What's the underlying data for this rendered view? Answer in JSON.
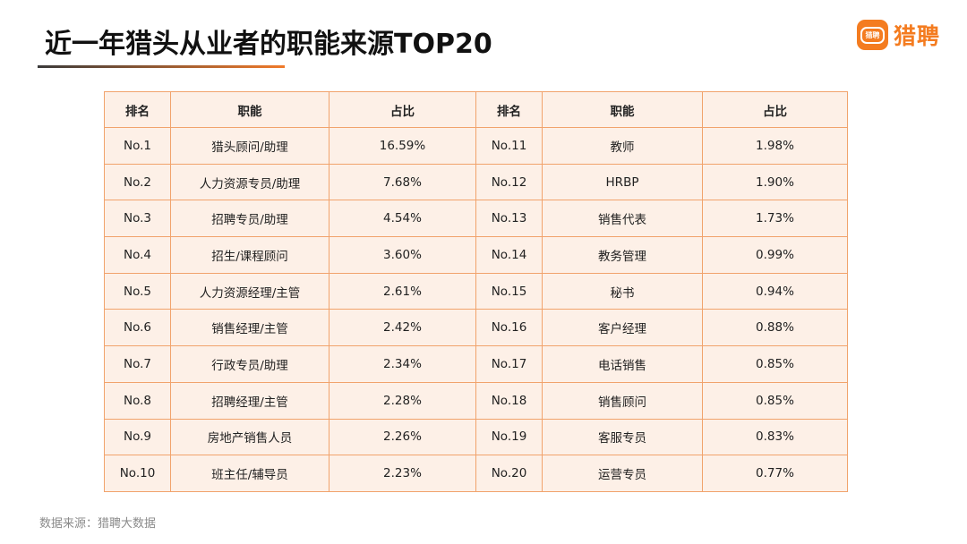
{
  "title": "近一年猎头从业者的职能来源TOP20",
  "logo": {
    "icon_text": "猎聘",
    "text": "猎聘"
  },
  "table": {
    "headers": [
      "排名",
      "职能",
      "占比",
      "排名",
      "职能",
      "占比"
    ],
    "rows": [
      [
        "No.1",
        "猎头顾问/助理",
        "16.59%",
        "No.11",
        "教师",
        "1.98%"
      ],
      [
        "No.2",
        "人力资源专员/助理",
        "7.68%",
        "No.12",
        "HRBP",
        "1.90%"
      ],
      [
        "No.3",
        "招聘专员/助理",
        "4.54%",
        "No.13",
        "销售代表",
        "1.73%"
      ],
      [
        "No.4",
        "招生/课程顾问",
        "3.60%",
        "No.14",
        "教务管理",
        "0.99%"
      ],
      [
        "No.5",
        "人力资源经理/主管",
        "2.61%",
        "No.15",
        "秘书",
        "0.94%"
      ],
      [
        "No.6",
        "销售经理/主管",
        "2.42%",
        "No.16",
        "客户经理",
        "0.88%"
      ],
      [
        "No.7",
        "行政专员/助理",
        "2.34%",
        "No.17",
        "电话销售",
        "0.85%"
      ],
      [
        "No.8",
        "招聘经理/主管",
        "2.28%",
        "No.18",
        "销售顾问",
        "0.85%"
      ],
      [
        "No.9",
        "房地产销售人员",
        "2.26%",
        "No.19",
        "客服专员",
        "0.83%"
      ],
      [
        "No.10",
        "班主任/辅导员",
        "2.23%",
        "No.20",
        "运营专员",
        "0.77%"
      ]
    ]
  },
  "footer": "数据来源：猎聘大数据",
  "colors": {
    "accent": "#f47c20",
    "table_border": "#f1a36c",
    "table_bg": "#fdf0e7"
  }
}
